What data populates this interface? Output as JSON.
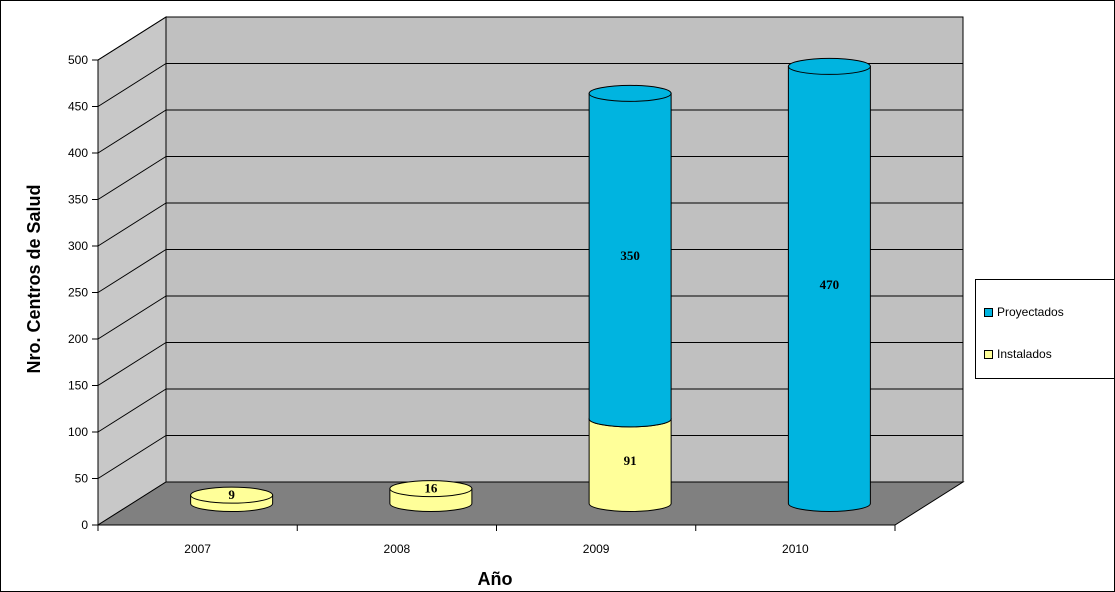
{
  "chart_data": {
    "type": "bar",
    "stacked": true,
    "three_d": true,
    "categories": [
      "2007",
      "2008",
      "2009",
      "2010"
    ],
    "series": [
      {
        "name": "Instalados",
        "values": [
          9,
          16,
          91,
          0
        ],
        "color": "#ffff99"
      },
      {
        "name": "Proyectados",
        "values": [
          0,
          0,
          350,
          470
        ],
        "color": "#00b4e0"
      }
    ],
    "data_labels": [
      {
        "category": "2007",
        "series": "Instalados",
        "text": "9"
      },
      {
        "category": "2008",
        "series": "Instalados",
        "text": "16"
      },
      {
        "category": "2009",
        "series": "Instalados",
        "text": "91"
      },
      {
        "category": "2009",
        "series": "Proyectados",
        "text": "350"
      },
      {
        "category": "2010",
        "series": "Proyectados",
        "text": "470"
      }
    ],
    "xlabel": "Año",
    "ylabel": "Nro. Centros de Salud",
    "ylim": [
      0,
      500
    ],
    "yticks": [
      0,
      50,
      100,
      150,
      200,
      250,
      300,
      350,
      400,
      450,
      500
    ],
    "grid": true,
    "legend": {
      "placement": "right",
      "order": [
        "Proyectados",
        "Instalados"
      ]
    },
    "colors": {
      "wall": "#c0c0c0",
      "side_wall": "#c8c8c8",
      "floor": "#808080"
    }
  }
}
